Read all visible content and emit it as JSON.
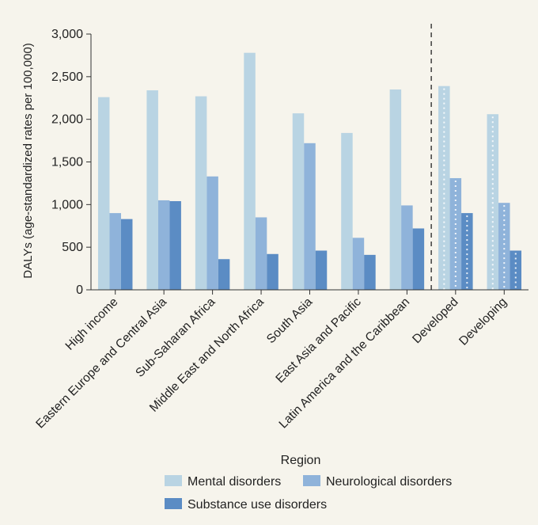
{
  "chart_data": {
    "type": "bar",
    "categories": [
      "High income",
      "Eastern Europe and Central Asia",
      "Sub-Saharan Africa",
      "Middle East and North Africa",
      "South Asia",
      "East Asia and Pacific",
      "Latin America and the Caribbean",
      "Developed",
      "Developing"
    ],
    "series": [
      {
        "name": "Mental disorders",
        "color": "#b9d4e3",
        "values": [
          2260,
          2340,
          2270,
          2780,
          2070,
          1840,
          2350,
          2390,
          2060
        ]
      },
      {
        "name": "Neurological disorders",
        "color": "#8fb3da",
        "values": [
          900,
          1050,
          1330,
          850,
          1720,
          610,
          990,
          1310,
          1020
        ]
      },
      {
        "name": "Substance use disorders",
        "color": "#5b8cc4",
        "values": [
          830,
          1040,
          360,
          420,
          460,
          410,
          720,
          900,
          460
        ]
      }
    ],
    "dotted_categories": [
      "Developed",
      "Developing"
    ],
    "separator_after_category": "Latin America and the Caribbean",
    "xlabel": "Region",
    "ylabel": "DALYs (age-standardized rates per 100,000)",
    "ylim": [
      0,
      3000
    ],
    "yticks": [
      0,
      500,
      1000,
      1500,
      2000,
      2500,
      3000
    ],
    "ytick_labels": [
      "0",
      "500",
      "1,000",
      "1,500",
      "2,000",
      "2,500",
      "3,000"
    ],
    "legend_placement": "bottom",
    "grid": false
  }
}
